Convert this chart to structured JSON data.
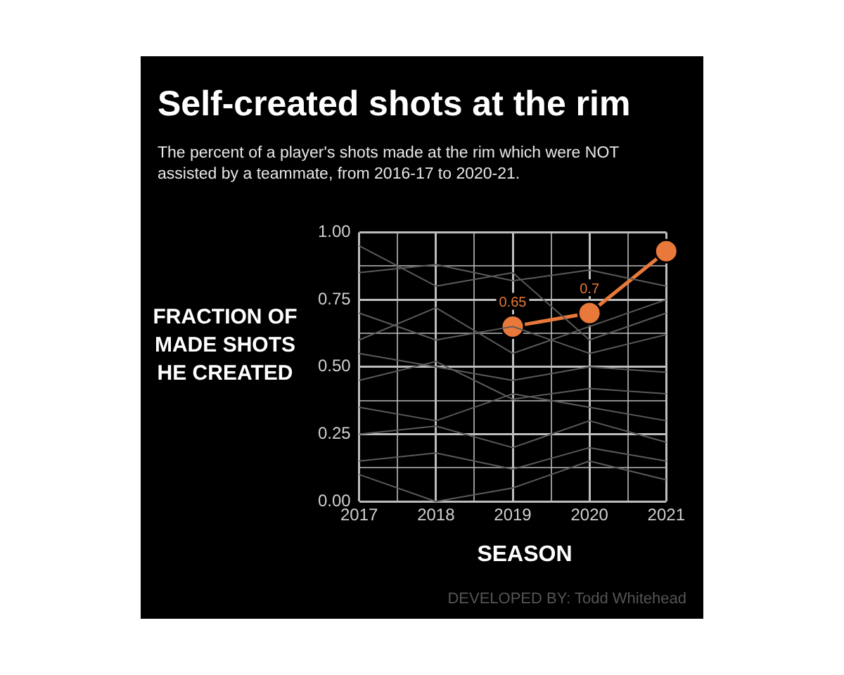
{
  "chart_data": {
    "type": "line",
    "title": "Self-created shots at the rim",
    "subtitle": "The percent of a player's shots made at the rim which were NOT assisted by a teammate, from 2016-17 to 2020-21.",
    "xlabel": "SEASON",
    "ylabel": "FRACTION OF MADE SHOTS HE CREATED",
    "x": [
      2017,
      2018,
      2019,
      2020,
      2021
    ],
    "xlim": [
      2017,
      2021
    ],
    "ylim": [
      0,
      1
    ],
    "xticks": [
      2017,
      {
        "value": 2017.5,
        "label": null
      },
      2018,
      {
        "value": 2018.5,
        "label": null
      },
      2019,
      {
        "value": 2019.5,
        "label": null
      },
      2020,
      {
        "value": 2020.5,
        "label": null
      },
      2021
    ],
    "yticks": [
      {
        "value": 0,
        "label": "0.00"
      },
      {
        "value": 0.125,
        "label": null
      },
      {
        "value": 0.25,
        "label": "0.25"
      },
      {
        "value": 0.375,
        "label": null
      },
      {
        "value": 0.5,
        "label": "0.50"
      },
      {
        "value": 0.625,
        "label": null
      },
      {
        "value": 0.75,
        "label": "0.75"
      },
      {
        "value": 0.875,
        "label": null
      },
      {
        "value": 1,
        "label": "1.00"
      }
    ],
    "grid": true,
    "legend": false,
    "series": [
      {
        "color": "#5a5a5a",
        "marker": "none",
        "values": [
          0.95,
          0.8,
          0.85,
          0.6,
          0.7
        ]
      },
      {
        "color": "#5a5a5a",
        "marker": "none",
        "values": [
          0.85,
          0.88,
          0.82,
          0.86,
          0.8
        ]
      },
      {
        "color": "#5a5a5a",
        "marker": "none",
        "values": [
          0.7,
          0.6,
          0.65,
          0.55,
          0.62
        ]
      },
      {
        "color": "#5a5a5a",
        "marker": "none",
        "values": [
          0.55,
          0.5,
          0.45,
          0.5,
          0.48
        ]
      },
      {
        "color": "#5a5a5a",
        "marker": "none",
        "values": [
          0.45,
          0.52,
          0.38,
          0.42,
          0.4
        ]
      },
      {
        "color": "#5a5a5a",
        "marker": "none",
        "values": [
          0.35,
          0.3,
          0.4,
          0.35,
          0.3
        ]
      },
      {
        "color": "#5a5a5a",
        "marker": "none",
        "values": [
          0.25,
          0.28,
          0.2,
          0.3,
          0.22
        ]
      },
      {
        "color": "#5a5a5a",
        "marker": "none",
        "values": [
          0.15,
          0.18,
          0.12,
          0.2,
          0.15
        ]
      },
      {
        "color": "#5a5a5a",
        "marker": "none",
        "values": [
          0.1,
          0,
          0.05,
          0.15,
          0.08
        ]
      },
      {
        "color": "#5a5a5a",
        "marker": "none",
        "values": [
          0.6,
          0.72,
          0.55,
          0.65,
          0.75
        ]
      },
      {
        "color": "#e8793a",
        "marker": "circle",
        "values": [
          null,
          null,
          0.65,
          0.7,
          0.93
        ],
        "value_labels": [
          null,
          null,
          "0.65",
          "0.7",
          null
        ]
      }
    ],
    "annotations": [
      "DEVELOPED BY: Todd Whitehead"
    ]
  }
}
